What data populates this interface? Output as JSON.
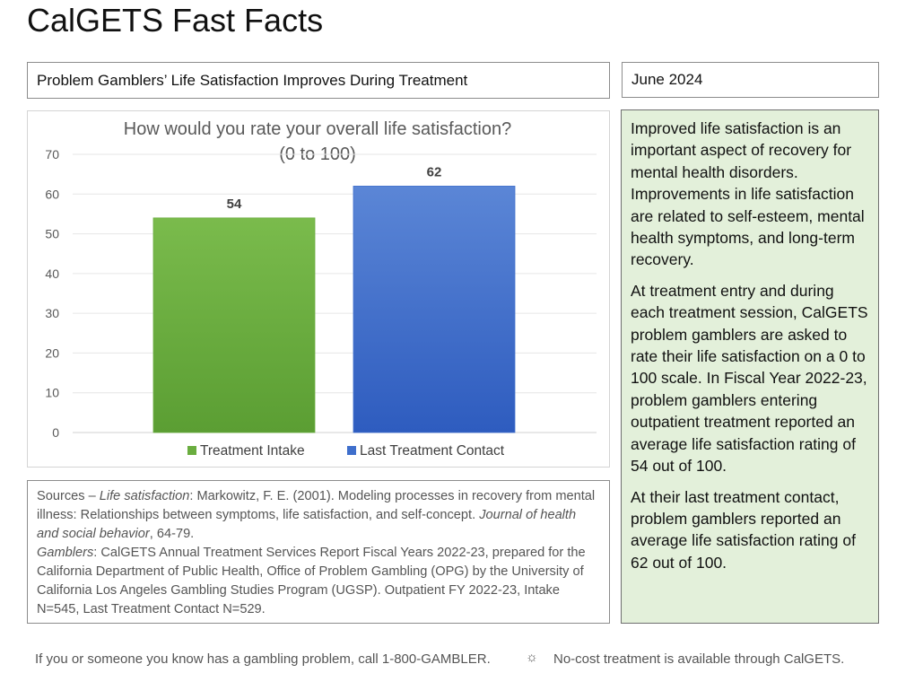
{
  "page": {
    "title": "CalGETS Fast Facts",
    "subtitle": "Problem Gamblers’ Life Satisfaction Improves During Treatment",
    "date": "June 2024"
  },
  "chart_data": {
    "type": "bar",
    "title": "How would you rate your overall life satisfaction?",
    "subtitle": "(0 to 100)",
    "xlabel": "",
    "ylabel": "",
    "ylim": [
      0,
      70
    ],
    "yticks": [
      0,
      10,
      20,
      30,
      40,
      50,
      60,
      70
    ],
    "grid": true,
    "legend_position": "bottom",
    "series": [
      {
        "name": "Treatment Intake",
        "value": 54,
        "color": "#6aad3f"
      },
      {
        "name": "Last Treatment Contact",
        "value": 62,
        "color": "#3f6fcc"
      }
    ]
  },
  "info": {
    "paragraphs": [
      "Improved life satisfaction is an important aspect of recovery for mental health disorders. Improvements in life satisfaction are related to self-esteem, mental health symptoms, and long-term recovery.",
      "At treatment entry and during each treatment session, CalGETS problem gamblers are asked to rate their life satisfaction on a 0 to 100 scale. In Fiscal Year 2022-23, problem gamblers entering outpatient treatment reported an average life satisfaction rating of 54 out of 100.",
      "At their last treatment contact, problem gamblers reported an average life satisfaction rating of 62 out of 100."
    ]
  },
  "sources": {
    "lead": "Sources – ",
    "ref1_label": "Life satisfaction",
    "ref1_text": ": Markowitz, F. E. (2001). Modeling processes in recovery from mental illness: Relationships between symptoms, life satisfaction, and self-concept. ",
    "ref1_journal": "Journal of health and social behavior",
    "ref1_pages": ", 64-79.",
    "ref2_label": "Gamblers",
    "ref2_text": ": CalGETS Annual Treatment Services Report Fiscal Years 2022-23, prepared for the California Department of Public Health, Office of Problem Gambling (OPG) by the University of California Los Angeles Gambling Studies Program (UGSP). Outpatient FY 2022-23, Intake N=545, Last Treatment Contact N=529."
  },
  "footer": {
    "left": "If you or someone you know has a gambling problem, call 1-800-GAMBLER.",
    "separator": "☼",
    "right": "No-cost treatment is available through CalGETS."
  }
}
